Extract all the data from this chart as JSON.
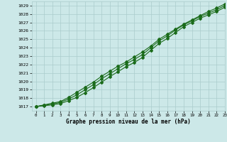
{
  "title": "Graphe pression niveau de la mer (hPa)",
  "bg_color": "#cce8e8",
  "grid_color": "#aacccc",
  "line_color": "#1a6b1a",
  "xlim": [
    -0.5,
    23
  ],
  "ylim": [
    1016.5,
    1029.5
  ],
  "xticks": [
    0,
    1,
    2,
    3,
    4,
    5,
    6,
    7,
    8,
    9,
    10,
    11,
    12,
    13,
    14,
    15,
    16,
    17,
    18,
    19,
    20,
    21,
    22,
    23
  ],
  "yticks": [
    1017,
    1018,
    1019,
    1020,
    1021,
    1022,
    1023,
    1024,
    1025,
    1026,
    1027,
    1028,
    1029
  ],
  "line1_x": [
    0,
    1,
    2,
    3,
    4,
    5,
    6,
    7,
    8,
    9,
    10,
    11,
    12,
    13,
    14,
    15,
    16,
    17,
    18,
    19,
    20,
    21,
    22,
    23
  ],
  "line1_y": [
    1017.0,
    1017.2,
    1017.4,
    1017.6,
    1018.1,
    1018.7,
    1019.3,
    1019.9,
    1020.6,
    1021.2,
    1021.8,
    1022.3,
    1022.9,
    1023.5,
    1024.2,
    1025.0,
    1025.6,
    1026.2,
    1026.8,
    1027.3,
    1027.8,
    1028.3,
    1028.7,
    1029.2
  ],
  "line2_x": [
    0,
    1,
    2,
    3,
    4,
    5,
    6,
    7,
    8,
    9,
    10,
    11,
    12,
    13,
    14,
    15,
    16,
    17,
    18,
    19,
    20,
    21,
    22,
    23
  ],
  "line2_y": [
    1017.0,
    1017.15,
    1017.3,
    1017.5,
    1017.9,
    1018.4,
    1019.0,
    1019.6,
    1020.3,
    1020.9,
    1021.5,
    1022.1,
    1022.6,
    1023.2,
    1024.0,
    1024.8,
    1025.4,
    1026.1,
    1026.7,
    1027.2,
    1027.7,
    1028.1,
    1028.5,
    1029.0
  ],
  "line3_x": [
    0,
    1,
    2,
    3,
    4,
    5,
    6,
    7,
    8,
    9,
    10,
    11,
    12,
    13,
    14,
    15,
    16,
    17,
    18,
    19,
    20,
    21,
    22,
    23
  ],
  "line3_y": [
    1017.0,
    1017.1,
    1017.2,
    1017.35,
    1017.7,
    1018.1,
    1018.65,
    1019.25,
    1019.9,
    1020.55,
    1021.15,
    1021.75,
    1022.25,
    1022.85,
    1023.7,
    1024.5,
    1025.1,
    1025.8,
    1026.5,
    1027.0,
    1027.5,
    1027.9,
    1028.3,
    1028.8
  ]
}
